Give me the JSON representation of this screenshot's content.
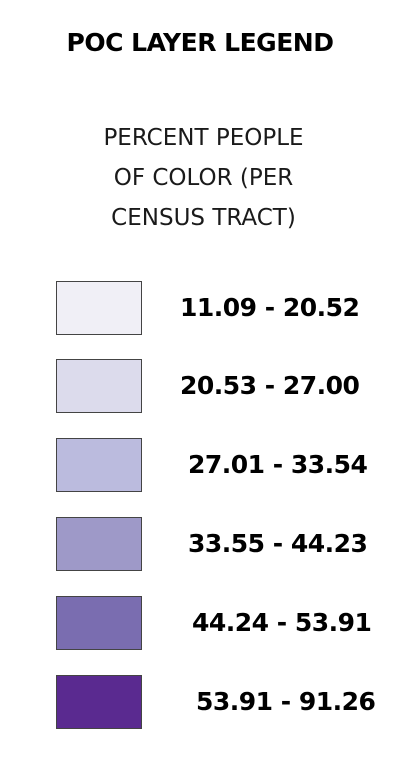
{
  "title": "POC LAYER LEGEND",
  "subtitle": "PERCENT PEOPLE\nOF COLOR (PER\nCENSUS TRACT)",
  "legend": {
    "items": [
      {
        "label": "11.09 - 20.52",
        "color": "#f0eff6"
      },
      {
        "label": "20.53 - 27.00",
        "color": "#dcdbec"
      },
      {
        "label": "27.01 - 33.54",
        "color": "#bbbbde"
      },
      {
        "label": "33.55 - 44.23",
        "color": "#9e99c8"
      },
      {
        "label": "44.24 - 53.91",
        "color": "#7a6db0"
      },
      {
        "label": "53.91 - 91.26",
        "color": "#5a2a90"
      }
    ]
  }
}
